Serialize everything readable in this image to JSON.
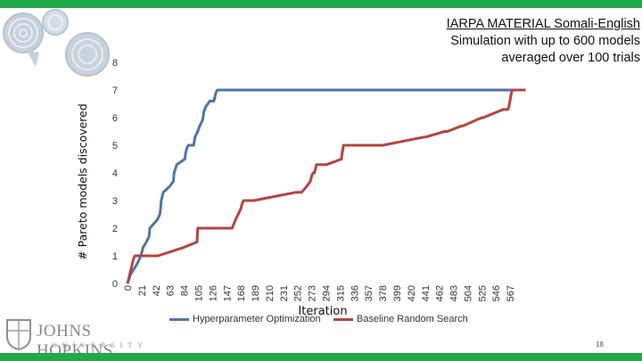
{
  "slide": {
    "title_lines": [
      "IARPA MATERIAL Somali-English",
      "Simulation with up to 600 models",
      "averaged over 100 trials"
    ],
    "page_number": "18",
    "accent_color": "#22a94a"
  },
  "logo": {
    "word": "JOHNS HOPKINS",
    "sub": "UNIVERSITY"
  },
  "chart_data": {
    "type": "line",
    "xlabel": "Iteration",
    "ylabel": "# Pareto models discovered",
    "ylim": [
      0,
      8
    ],
    "yticks": [
      0,
      1,
      2,
      3,
      4,
      5,
      6,
      7,
      8
    ],
    "xticks": [
      "0",
      "21",
      "42",
      "63",
      "84",
      "105",
      "126",
      "147",
      "168",
      "189",
      "210",
      "231",
      "252",
      "273",
      "294",
      "315",
      "336",
      "357",
      "378",
      "399",
      "420",
      "441",
      "462",
      "483",
      "504",
      "525",
      "546",
      "567"
    ],
    "xlim": [
      0,
      588
    ],
    "grid": false,
    "legend_position": "bottom",
    "series": [
      {
        "name": "Hyperparameter Optimization",
        "color": "#4a76a8",
        "x": [
          0,
          4,
          9,
          14,
          20,
          23,
          28,
          32,
          33,
          44,
          48,
          49,
          50,
          53,
          62,
          68,
          69,
          73,
          85,
          86,
          88,
          90,
          95,
          98,
          100,
          104,
          107,
          111,
          112,
          113,
          116,
          122,
          128,
          130,
          131,
          133,
          134,
          136,
          148,
          149,
          156,
          176,
          178,
          180,
          181,
          182,
          184,
          204,
          205,
          210,
          212,
          214,
          237,
          240,
          277,
          282,
          306,
          310,
          360,
          590
        ],
        "y": [
          0,
          0.3,
          0.5,
          0.7,
          1,
          1.3,
          1.5,
          1.7,
          2,
          2.3,
          2.5,
          2.7,
          3,
          3.3,
          3.5,
          3.7,
          4,
          4.3,
          4.5,
          4.7,
          4.9,
          5.0,
          5.0,
          5.0,
          5.3,
          5.5,
          5.7,
          5.9,
          6.0,
          6.2,
          6.4,
          6.6,
          6.6,
          6.8,
          6.9,
          7.0,
          7.0,
          7.0,
          7.0,
          7.0,
          7.0,
          7.0,
          7.0,
          7.0,
          7.0,
          7.0,
          7.0,
          7.0,
          7.0,
          7.0,
          7.0,
          7.0,
          7.0,
          7.0,
          7.0,
          7.0,
          7.0,
          7.0,
          7.0,
          7.0
        ]
      },
      {
        "name": "Baseline Random Search",
        "color": "#b5443f",
        "x": [
          0,
          3,
          5,
          7,
          9,
          11,
          13,
          45,
          83,
          103,
          104,
          155,
          160,
          164,
          168,
          170,
          172,
          176,
          183,
          185,
          187,
          250,
          253,
          256,
          258,
          265,
          271,
          273,
          275,
          277,
          280,
          295,
          317,
          318,
          320,
          338,
          350,
          352,
          354,
          368,
          378,
          440,
          442,
          470,
          474,
          495,
          497,
          525,
          527,
          557,
          564,
          566,
          568,
          570,
          573,
          590
        ],
        "y": [
          0,
          0.3,
          0.5,
          0.7,
          0.9,
          1.0,
          1.0,
          1.0,
          1.3,
          1.5,
          2.0,
          2.0,
          2.3,
          2.5,
          2.7,
          2.9,
          3.0,
          3.0,
          3.0,
          3.0,
          3.0,
          3.3,
          3.3,
          3.3,
          3.3,
          3.5,
          3.7,
          3.9,
          4.0,
          4.0,
          4.3,
          4.3,
          4.5,
          4.7,
          5.0,
          5.0,
          5.0,
          5.0,
          5.0,
          5.0,
          5.0,
          5.3,
          5.3,
          5.5,
          5.5,
          5.7,
          5.7,
          6.0,
          6.0,
          6.3,
          6.3,
          6.5,
          6.8,
          7.0,
          7.0,
          7.0
        ]
      }
    ]
  }
}
